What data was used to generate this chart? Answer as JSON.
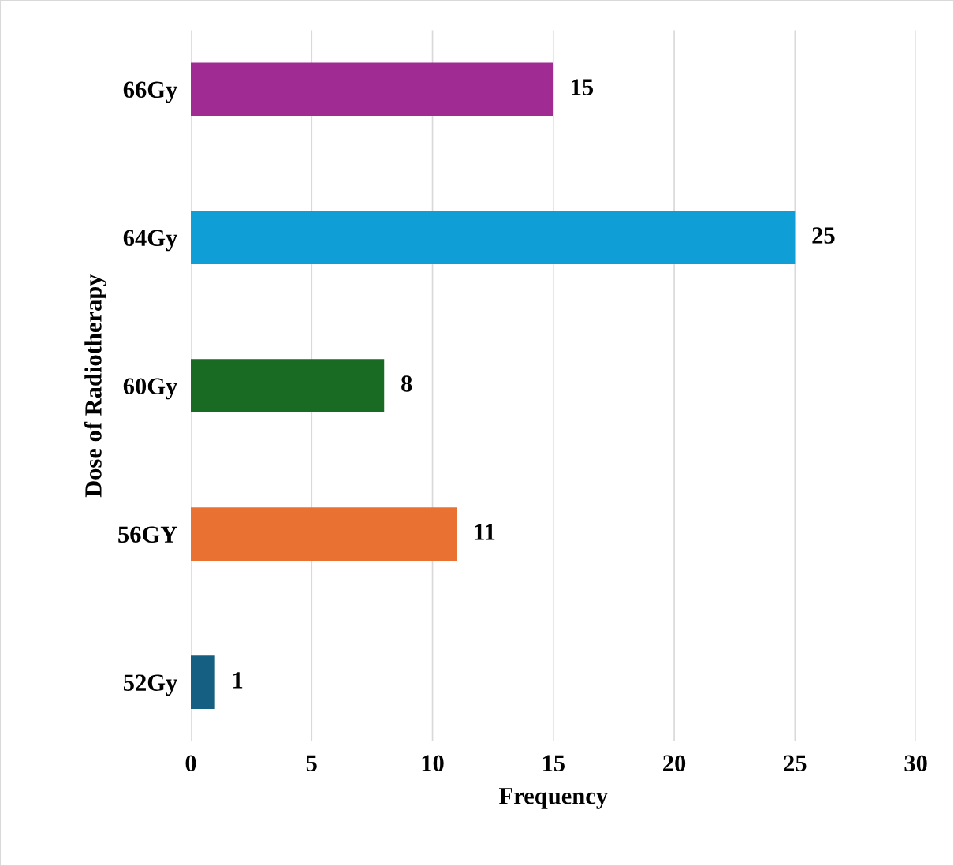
{
  "chart_data": {
    "type": "bar",
    "orientation": "horizontal",
    "xlabel": "Frequency",
    "ylabel": "Dose of Radiotherapy",
    "categories": [
      "66Gy",
      "64Gy",
      "60Gy",
      "56GY",
      "52Gy"
    ],
    "values": [
      15,
      25,
      8,
      11,
      1
    ],
    "colors": [
      "#a02b93",
      "#0f9ed5",
      "#196b24",
      "#e97132",
      "#156082"
    ],
    "xlim": [
      0,
      30
    ],
    "xticks": [
      0,
      5,
      10,
      15,
      20,
      25,
      30
    ],
    "grid": "x",
    "data_labels": true
  }
}
